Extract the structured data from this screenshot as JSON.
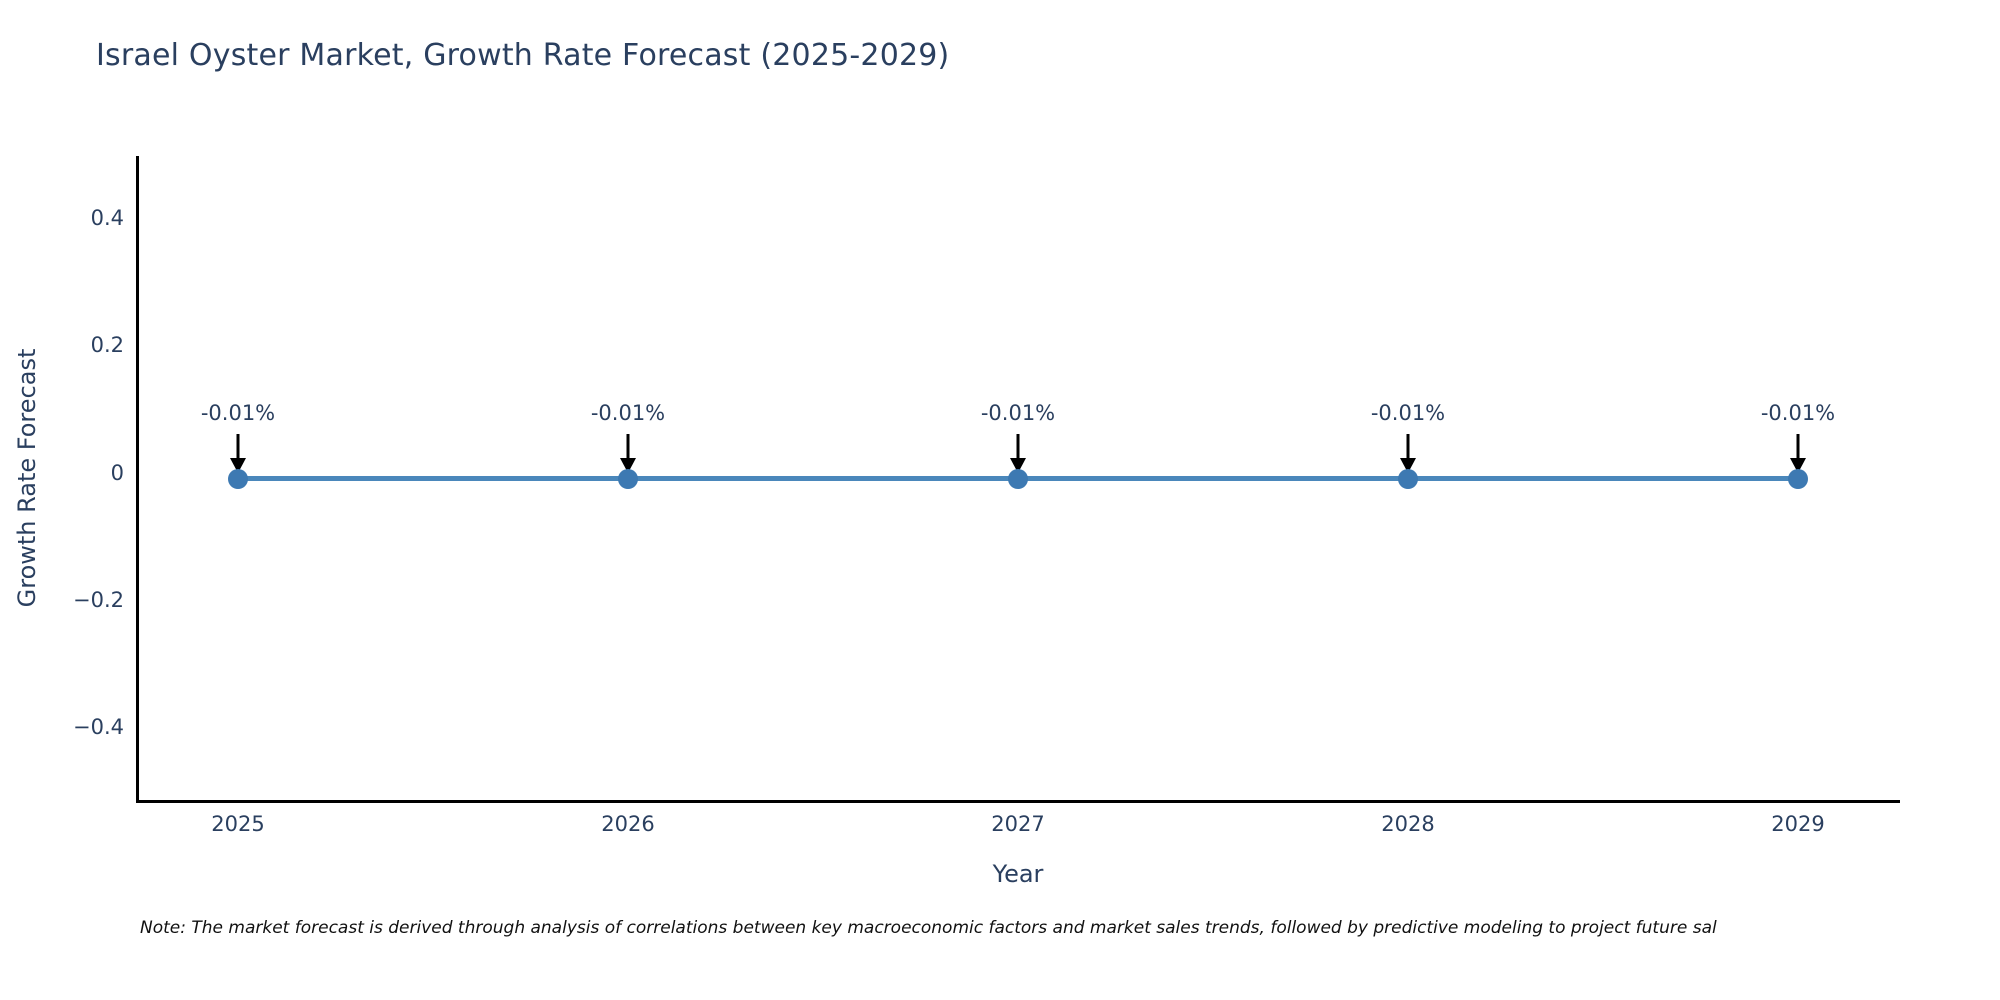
{
  "title": "Israel Oyster Market, Growth Rate Forecast (2025-2029)",
  "note": "Note: The market forecast is derived through analysis of correlations between key macroeconomic factors and market sales trends, followed by predictive modeling to project future sal",
  "chart_data": {
    "type": "line",
    "title": "Israel Oyster Market, Growth Rate Forecast (2025-2029)",
    "xlabel": "Year",
    "ylabel": "Growth Rate Forecast",
    "x": [
      "2025",
      "2026",
      "2027",
      "2028",
      "2029"
    ],
    "series": [
      {
        "name": "Growth Rate Forecast",
        "values": [
          -0.01,
          -0.01,
          -0.01,
          -0.01,
          -0.01
        ]
      }
    ],
    "point_labels": [
      "-0.01%",
      "-0.01%",
      "-0.01%",
      "-0.01%",
      "-0.01%"
    ],
    "ytick_labels": [
      "0.4",
      "0.2",
      "0",
      "−0.2",
      "−0.4"
    ],
    "ytick_values": [
      0.4,
      0.2,
      0,
      -0.2,
      -0.4
    ],
    "ylim": [
      -0.51,
      0.51
    ],
    "grid": false,
    "legend": false,
    "colors": {
      "line": "#4a87bb",
      "marker": "#3d79b2",
      "axis": "#000000",
      "text": "#2a3f5f",
      "arrow": "#000000",
      "background": "#ffffff"
    }
  }
}
